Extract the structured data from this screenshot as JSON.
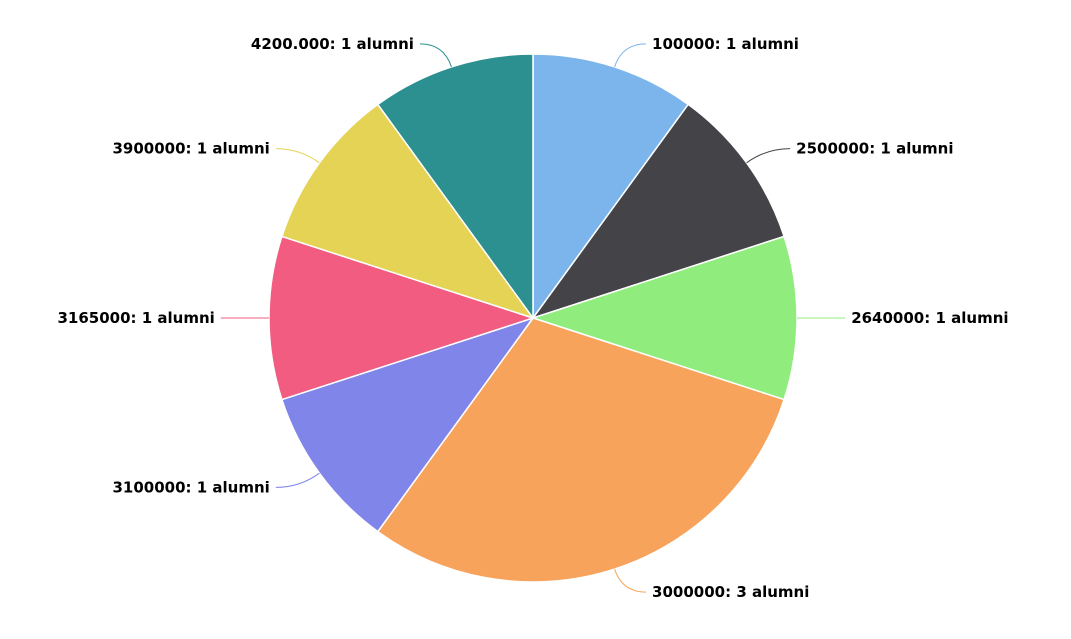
{
  "chart_data": {
    "type": "pie",
    "label_suffix": "alumni",
    "slices": [
      {
        "category": "100000",
        "value": 1,
        "label": "100000: 1 alumni",
        "color": "#7cb5ec"
      },
      {
        "category": "2500000",
        "value": 1,
        "label": "2500000: 1 alumni",
        "color": "#434348"
      },
      {
        "category": "2640000",
        "value": 1,
        "label": "2640000: 1 alumni",
        "color": "#90ed7d"
      },
      {
        "category": "3000000",
        "value": 3,
        "label": "3000000: 3 alumni",
        "color": "#f7a35c"
      },
      {
        "category": "3100000",
        "value": 1,
        "label": "3100000: 1 alumni",
        "color": "#8085e9"
      },
      {
        "category": "3165000",
        "value": 1,
        "label": "3165000: 1 alumni",
        "color": "#f15c80"
      },
      {
        "category": "3900000",
        "value": 1,
        "label": "3900000: 1 alumni",
        "color": "#e4d354"
      },
      {
        "category": "4200.000",
        "value": 1,
        "label": "4200.000: 1 alumni",
        "color": "#2b908f"
      }
    ]
  }
}
